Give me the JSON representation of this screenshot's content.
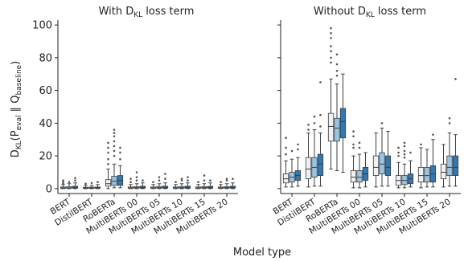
{
  "figure": {
    "xlabel": "Model type",
    "ylabel_parts": [
      "D",
      "KL",
      "(P",
      "eval",
      " ∥ Q",
      "baseline",
      ")"
    ]
  },
  "chart_data": [
    {
      "type": "box",
      "title_parts": [
        "With D",
        "KL",
        " loss term"
      ],
      "categories": [
        "BERT",
        "DistilBERT",
        "RoBERTa",
        "MultiBERTs 00",
        "MultiBERTs 05",
        "MultiBERTs 10",
        "MultiBERTs 15",
        "MultiBERTs 20"
      ],
      "yticks": [
        0,
        20,
        40,
        60,
        80,
        100
      ],
      "ylim": [
        -3,
        103
      ],
      "series_colors": [
        "#f0f0f0",
        "#9cc4e0",
        "#2f79b5"
      ],
      "boxes": [
        [
          {
            "whislo": 0,
            "q1": 0.2,
            "med": 0.5,
            "q3": 1,
            "whishi": 2.5,
            "fliers": [
              3,
              4,
              5
            ]
          },
          {
            "whislo": 0,
            "q1": 0.2,
            "med": 0.5,
            "q3": 1.2,
            "whishi": 3,
            "fliers": [
              4
            ]
          },
          {
            "whislo": 0,
            "q1": 0.3,
            "med": 0.7,
            "q3": 1.5,
            "whishi": 3.5,
            "fliers": [
              5,
              6.5
            ]
          }
        ],
        [
          {
            "whislo": 0,
            "q1": 0.2,
            "med": 0.4,
            "q3": 0.8,
            "whishi": 2,
            "fliers": [
              3
            ]
          },
          {
            "whislo": 0,
            "q1": 0.2,
            "med": 0.4,
            "q3": 0.9,
            "whishi": 2,
            "fliers": [
              3.5
            ]
          },
          {
            "whislo": 0,
            "q1": 0.2,
            "med": 0.5,
            "q3": 1,
            "whishi": 2.5,
            "fliers": [
              4
            ]
          }
        ],
        [
          {
            "whislo": 0,
            "q1": 1.5,
            "med": 3,
            "q3": 5.5,
            "whishi": 12,
            "fliers": [
              15,
              18,
              22,
              25,
              28
            ]
          },
          {
            "whislo": 0.5,
            "q1": 2,
            "med": 4.5,
            "q3": 7.5,
            "whishi": 15,
            "fliers": [
              20,
              23,
              26,
              29,
              32,
              34,
              36
            ]
          },
          {
            "whislo": 0.5,
            "q1": 2,
            "med": 5,
            "q3": 8,
            "whishi": 14,
            "fliers": [
              18,
              22,
              25
            ]
          }
        ],
        [
          {
            "whislo": 0,
            "q1": 0.2,
            "med": 0.5,
            "q3": 1,
            "whishi": 2.5,
            "fliers": [
              4,
              6
            ]
          },
          {
            "whislo": 0,
            "q1": 0.3,
            "med": 0.6,
            "q3": 1.2,
            "whishi": 3,
            "fliers": [
              5,
              7,
              10
            ]
          },
          {
            "whislo": 0,
            "q1": 0.3,
            "med": 0.7,
            "q3": 1.5,
            "whishi": 3.5,
            "fliers": [
              5
            ]
          }
        ],
        [
          {
            "whislo": 0,
            "q1": 0.2,
            "med": 0.5,
            "q3": 1,
            "whishi": 2.5,
            "fliers": [
              4
            ]
          },
          {
            "whislo": 0,
            "q1": 0.3,
            "med": 0.6,
            "q3": 1.3,
            "whishi": 3,
            "fliers": [
              5,
              7
            ]
          },
          {
            "whislo": 0,
            "q1": 0.3,
            "med": 0.7,
            "q3": 1.5,
            "whishi": 3.5,
            "fliers": [
              6,
              9
            ]
          }
        ],
        [
          {
            "whislo": 0,
            "q1": 0.2,
            "med": 0.5,
            "q3": 1,
            "whishi": 2.5,
            "fliers": [
              4
            ]
          },
          {
            "whislo": 0,
            "q1": 0.3,
            "med": 0.6,
            "q3": 1.3,
            "whishi": 3,
            "fliers": [
              5,
              6
            ]
          },
          {
            "whislo": 0,
            "q1": 0.3,
            "med": 0.7,
            "q3": 1.5,
            "whishi": 3.5,
            "fliers": [
              5,
              7
            ]
          }
        ],
        [
          {
            "whislo": 0,
            "q1": 0.2,
            "med": 0.5,
            "q3": 1,
            "whishi": 2.5,
            "fliers": [
              4
            ]
          },
          {
            "whislo": 0,
            "q1": 0.3,
            "med": 0.6,
            "q3": 1.2,
            "whishi": 3,
            "fliers": [
              5,
              8
            ]
          },
          {
            "whislo": 0,
            "q1": 0.3,
            "med": 0.7,
            "q3": 1.4,
            "whishi": 3.5,
            "fliers": [
              5
            ]
          }
        ],
        [
          {
            "whislo": 0,
            "q1": 0.2,
            "med": 0.5,
            "q3": 1,
            "whishi": 2.5,
            "fliers": [
              4
            ]
          },
          {
            "whislo": 0,
            "q1": 0.3,
            "med": 0.6,
            "q3": 1.2,
            "whishi": 3,
            "fliers": [
              5,
              6
            ]
          },
          {
            "whislo": 0,
            "q1": 0.3,
            "med": 0.7,
            "q3": 1.5,
            "whishi": 3.5,
            "fliers": [
              6
            ]
          }
        ]
      ]
    },
    {
      "type": "box",
      "title_parts": [
        "Without D",
        "KL",
        " loss term"
      ],
      "categories": [
        "BERT",
        "DistilBERT",
        "RoBERTa",
        "MultiBERTs 00",
        "MultiBERTs 05",
        "MultiBERTs 10",
        "MultiBERTs 15",
        "MultiBERTs 20"
      ],
      "yticks": [
        0,
        20,
        40,
        60,
        80,
        100
      ],
      "ylim": [
        -3,
        103
      ],
      "series_colors": [
        "#f0f0f0",
        "#9cc4e0",
        "#2f79b5"
      ],
      "boxes": [
        [
          {
            "whislo": 1,
            "q1": 3.5,
            "med": 6,
            "q3": 9,
            "whishi": 17,
            "fliers": [
              21,
              25,
              31
            ]
          },
          {
            "whislo": 1,
            "q1": 4,
            "med": 7,
            "q3": 10,
            "whishi": 18,
            "fliers": [
              23
            ]
          },
          {
            "whislo": 1.5,
            "q1": 5,
            "med": 8,
            "q3": 11,
            "whishi": 19,
            "fliers": [
              24,
              27
            ]
          }
        ],
        [
          {
            "whislo": 1,
            "q1": 6,
            "med": 12,
            "q3": 19,
            "whishi": 34,
            "fliers": [
              36,
              39
            ]
          },
          {
            "whislo": 1.5,
            "q1": 7,
            "med": 13,
            "q3": 19,
            "whishi": 36,
            "fliers": [
              40,
              44
            ]
          },
          {
            "whislo": 1.5,
            "q1": 8,
            "med": 15,
            "q3": 21,
            "whishi": 34,
            "fliers": [
              38,
              45,
              65
            ]
          }
        ],
        [
          {
            "whislo": 12,
            "q1": 29,
            "med": 38,
            "q3": 46,
            "whishi": 67,
            "fliers": [
              77,
              80,
              84,
              87,
              92,
              95,
              98
            ]
          },
          {
            "whislo": 11,
            "q1": 29,
            "med": 37,
            "q3": 43,
            "whishi": 64,
            "fliers": [
              69,
              72,
              76,
              82
            ]
          },
          {
            "whislo": 10,
            "q1": 31,
            "med": 41,
            "q3": 49,
            "whishi": 70,
            "fliers": []
          }
        ],
        [
          {
            "whislo": 0.5,
            "q1": 4,
            "med": 7,
            "q3": 11,
            "whishi": 20,
            "fliers": [
              25,
              27,
              32,
              35
            ]
          },
          {
            "whislo": 0.5,
            "q1": 4,
            "med": 7,
            "q3": 11,
            "whishi": 21,
            "fliers": [
              25,
              28
            ]
          },
          {
            "whislo": 1,
            "q1": 5,
            "med": 9,
            "q3": 13,
            "whishi": 22,
            "fliers": []
          }
        ],
        [
          {
            "whislo": 1,
            "q1": 8,
            "med": 13,
            "q3": 20,
            "whishi": 34,
            "fliers": []
          },
          {
            "whislo": 1.5,
            "q1": 9,
            "med": 15,
            "q3": 22,
            "whishi": 37,
            "fliers": [
              40
            ]
          },
          {
            "whislo": 1.5,
            "q1": 8,
            "med": 13,
            "q3": 20,
            "whishi": 35,
            "fliers": []
          }
        ],
        [
          {
            "whislo": 0.5,
            "q1": 2,
            "med": 5,
            "q3": 8,
            "whishi": 16,
            "fliers": [
              20,
              22,
              25
            ]
          },
          {
            "whislo": 0.5,
            "q1": 2.5,
            "med": 5,
            "q3": 8,
            "whishi": 15,
            "fliers": [
              19,
              21,
              23,
              26,
              28
            ]
          },
          {
            "whislo": 1,
            "q1": 3,
            "med": 6,
            "q3": 9,
            "whishi": 17,
            "fliers": [
              22
            ]
          }
        ],
        [
          {
            "whislo": 0.5,
            "q1": 4,
            "med": 8,
            "q3": 13,
            "whishi": 25,
            "fliers": [
              27
            ]
          },
          {
            "whislo": 1,
            "q1": 4,
            "med": 8,
            "q3": 13,
            "whishi": 24,
            "fliers": []
          },
          {
            "whislo": 1,
            "q1": 4,
            "med": 9,
            "q3": 14,
            "whishi": 30,
            "fliers": [
              33
            ]
          }
        ],
        [
          {
            "whislo": 1,
            "q1": 6,
            "med": 10,
            "q3": 15,
            "whishi": 27,
            "fliers": []
          },
          {
            "whislo": 1.5,
            "q1": 8,
            "med": 13,
            "q3": 20,
            "whishi": 34,
            "fliers": [
              40,
              43
            ]
          },
          {
            "whislo": 1.5,
            "q1": 8,
            "med": 13,
            "q3": 20,
            "whishi": 33,
            "fliers": [
              67
            ]
          }
        ]
      ]
    }
  ]
}
